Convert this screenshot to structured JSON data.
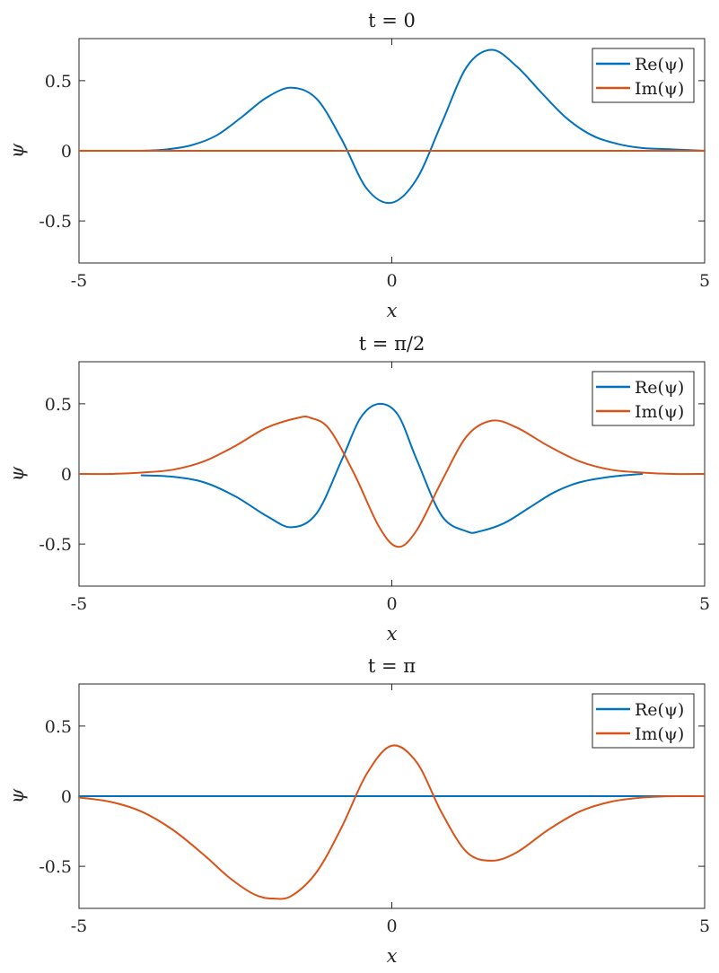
{
  "chart_data": [
    {
      "type": "line",
      "title": "t = 0",
      "xlabel": "x",
      "ylabel": "ψ",
      "xlim": [
        -5,
        5
      ],
      "ylim": [
        -0.8,
        0.8
      ],
      "xticks": [
        -5,
        0,
        5
      ],
      "xtick_labels": [
        "-5",
        "0",
        "5"
      ],
      "yticks": [
        0.5,
        0,
        -0.5
      ],
      "ytick_labels": [
        "0.5",
        "0",
        "-0.5"
      ],
      "grid": false,
      "legend_position": "top-right",
      "x": [
        -4.0,
        -3.6,
        -3.2,
        -2.8,
        -2.4,
        -2.0,
        -1.6,
        -1.2,
        -0.8,
        -0.4,
        0.0,
        0.4,
        0.8,
        1.2,
        1.6,
        2.0,
        2.4,
        2.8,
        3.2,
        3.6,
        4.0,
        4.5,
        5.0
      ],
      "series": [
        {
          "name": "Re(ψ)",
          "color": "#0072BD",
          "x": [
            -4.0,
            -3.6,
            -3.2,
            -2.8,
            -2.4,
            -2.0,
            -1.6,
            -1.2,
            -0.8,
            -0.4,
            0.0,
            0.4,
            0.8,
            1.2,
            1.6,
            2.0,
            2.4,
            2.8,
            3.2,
            3.6,
            4.0,
            4.5,
            5.0
          ],
          "values": [
            0.0,
            0.01,
            0.04,
            0.11,
            0.24,
            0.38,
            0.45,
            0.37,
            0.08,
            -0.27,
            -0.37,
            -0.2,
            0.2,
            0.6,
            0.72,
            0.6,
            0.41,
            0.23,
            0.11,
            0.05,
            0.02,
            0.01,
            0.0
          ]
        },
        {
          "name": "Im(ψ)",
          "color": "#D95319",
          "x": [
            -5,
            5
          ],
          "values": [
            0,
            0
          ]
        }
      ]
    },
    {
      "type": "line",
      "title": "t = π/2",
      "xlabel": "x",
      "ylabel": "ψ",
      "xlim": [
        -5,
        5
      ],
      "ylim": [
        -0.8,
        0.8
      ],
      "xticks": [
        -5,
        0,
        5
      ],
      "xtick_labels": [
        "-5",
        "0",
        "5"
      ],
      "yticks": [
        0.5,
        0,
        -0.5
      ],
      "ytick_labels": [
        "0.5",
        "0",
        "-0.5"
      ],
      "grid": false,
      "legend_position": "top-right",
      "series": [
        {
          "name": "Re(ψ)",
          "color": "#0072BD",
          "x": [
            -4.0,
            -3.5,
            -3.0,
            -2.5,
            -2.0,
            -1.6,
            -1.2,
            -0.8,
            -0.5,
            -0.2,
            0.1,
            0.4,
            0.8,
            1.2,
            1.4,
            1.8,
            2.2,
            2.6,
            3.0,
            3.5,
            4.0
          ],
          "values": [
            -0.01,
            -0.02,
            -0.06,
            -0.16,
            -0.3,
            -0.38,
            -0.28,
            0.1,
            0.4,
            0.5,
            0.42,
            0.1,
            -0.3,
            -0.41,
            -0.41,
            -0.35,
            -0.24,
            -0.13,
            -0.06,
            -0.02,
            0.0
          ]
        },
        {
          "name": "Im(ψ)",
          "color": "#D95319",
          "x": [
            -5.0,
            -4.5,
            -4.0,
            -3.5,
            -3.0,
            -2.5,
            -2.0,
            -1.5,
            -1.3,
            -1.0,
            -0.6,
            -0.2,
            0.1,
            0.4,
            0.8,
            1.2,
            1.6,
            2.0,
            2.5,
            3.0,
            3.5,
            4.0,
            4.5,
            5.0
          ],
          "values": [
            0.0,
            0.0,
            0.01,
            0.03,
            0.09,
            0.2,
            0.33,
            0.4,
            0.4,
            0.32,
            0.0,
            -0.38,
            -0.52,
            -0.4,
            -0.05,
            0.27,
            0.38,
            0.33,
            0.2,
            0.09,
            0.03,
            0.01,
            0.0,
            0.0
          ]
        }
      ]
    },
    {
      "type": "line",
      "title": "t = π",
      "xlabel": "x",
      "ylabel": "ψ",
      "xlim": [
        -5,
        5
      ],
      "ylim": [
        -0.8,
        0.8
      ],
      "xticks": [
        -5,
        0,
        5
      ],
      "xtick_labels": [
        "-5",
        "0",
        "5"
      ],
      "yticks": [
        0.5,
        0,
        -0.5
      ],
      "ytick_labels": [
        "0.5",
        "0",
        "-0.5"
      ],
      "grid": false,
      "legend_position": "top-right",
      "series": [
        {
          "name": "Re(ψ)",
          "color": "#0072BD",
          "x": [
            -5,
            5
          ],
          "values": [
            0,
            0
          ]
        },
        {
          "name": "Im(ψ)",
          "color": "#D95319",
          "x": [
            -5.0,
            -4.5,
            -4.0,
            -3.5,
            -3.0,
            -2.6,
            -2.2,
            -1.9,
            -1.6,
            -1.2,
            -0.8,
            -0.4,
            0.0,
            0.4,
            0.8,
            1.2,
            1.6,
            2.0,
            2.5,
            3.0,
            3.5,
            4.0,
            4.5,
            5.0
          ],
          "values": [
            -0.01,
            -0.04,
            -0.11,
            -0.24,
            -0.42,
            -0.58,
            -0.7,
            -0.73,
            -0.71,
            -0.54,
            -0.22,
            0.16,
            0.36,
            0.24,
            -0.12,
            -0.4,
            -0.46,
            -0.4,
            -0.24,
            -0.11,
            -0.04,
            -0.01,
            0.0,
            0.0
          ]
        }
      ]
    }
  ]
}
